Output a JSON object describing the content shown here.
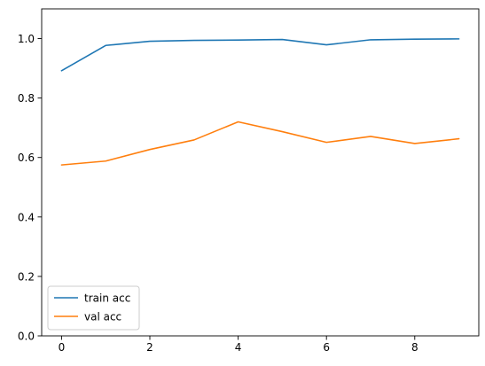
{
  "chart_data": {
    "type": "line",
    "title": "",
    "xlabel": "",
    "ylabel": "",
    "xlim": [
      -0.45,
      9.45
    ],
    "ylim": [
      0.0,
      1.1
    ],
    "x_ticks": [
      0,
      2,
      4,
      6,
      8
    ],
    "y_ticks": [
      0.0,
      0.2,
      0.4,
      0.6,
      0.8,
      1.0
    ],
    "x_tick_labels": [
      "0",
      "2",
      "4",
      "6",
      "8"
    ],
    "y_tick_labels": [
      "0.0",
      "0.2",
      "0.4",
      "0.6",
      "0.8",
      "1.0"
    ],
    "grid": false,
    "legend_position": "lower-left",
    "x": [
      0,
      1,
      2,
      3,
      4,
      5,
      6,
      7,
      8,
      9
    ],
    "series": [
      {
        "name": "train acc",
        "color": "#1f77b4",
        "values": [
          0.892,
          0.977,
          0.991,
          0.994,
          0.995,
          0.997,
          0.979,
          0.996,
          0.998,
          0.999
        ]
      },
      {
        "name": "val acc",
        "color": "#ff7f0e",
        "values": [
          0.575,
          0.588,
          0.627,
          0.659,
          0.72,
          0.687,
          0.651,
          0.671,
          0.647,
          0.663
        ]
      }
    ]
  }
}
